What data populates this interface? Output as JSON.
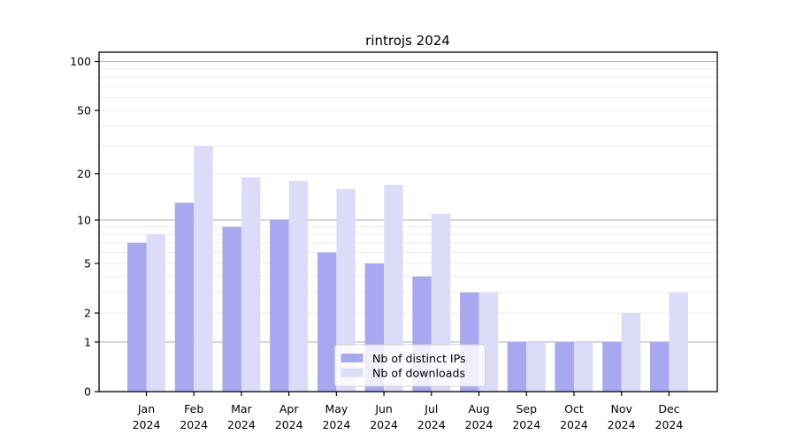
{
  "chart_data": {
    "type": "bar",
    "title": "rintrojs 2024",
    "categories": [
      "Jan 2024",
      "Feb 2024",
      "Mar 2024",
      "Apr 2024",
      "May 2024",
      "Jun 2024",
      "Jul 2024",
      "Aug 2024",
      "Sep 2024",
      "Oct 2024",
      "Nov 2024",
      "Dec 2024"
    ],
    "month_labels": [
      "Jan",
      "Feb",
      "Mar",
      "Apr",
      "May",
      "Jun",
      "Jul",
      "Aug",
      "Sep",
      "Oct",
      "Nov",
      "Dec"
    ],
    "year_label": "2024",
    "series": [
      {
        "name": "Nb of distinct IPs",
        "color": "#a8a8f0",
        "values": [
          7,
          13,
          9,
          10,
          6,
          5,
          4,
          3,
          1,
          1,
          1,
          1
        ]
      },
      {
        "name": "Nb of downloads",
        "color": "#dcdcf9",
        "values": [
          8,
          30,
          19,
          18,
          16,
          17,
          11,
          3,
          1,
          1,
          2,
          3
        ]
      }
    ],
    "y_axis": {
      "scale": "log1p",
      "tick_labels": [
        "100",
        "50",
        "20",
        "10",
        "5",
        "2",
        "1",
        "0"
      ],
      "tick_values": [
        100,
        50,
        20,
        10,
        5,
        2,
        1,
        0
      ],
      "major_gridlines": [
        1,
        10,
        100
      ],
      "minor_gridlines": [
        2,
        3,
        4,
        5,
        6,
        7,
        8,
        9,
        20,
        30,
        40,
        50,
        60,
        70,
        80,
        90
      ],
      "ylim": [
        0,
        114
      ]
    },
    "legend_position": "lower center",
    "grid": true,
    "colors": {
      "axis": "#000000",
      "major_grid": "#b3b3b3",
      "minor_grid": "#ededed",
      "legend_border": "#d2d2d2",
      "legend_bg": "#ffffff",
      "text": "#000000"
    }
  }
}
